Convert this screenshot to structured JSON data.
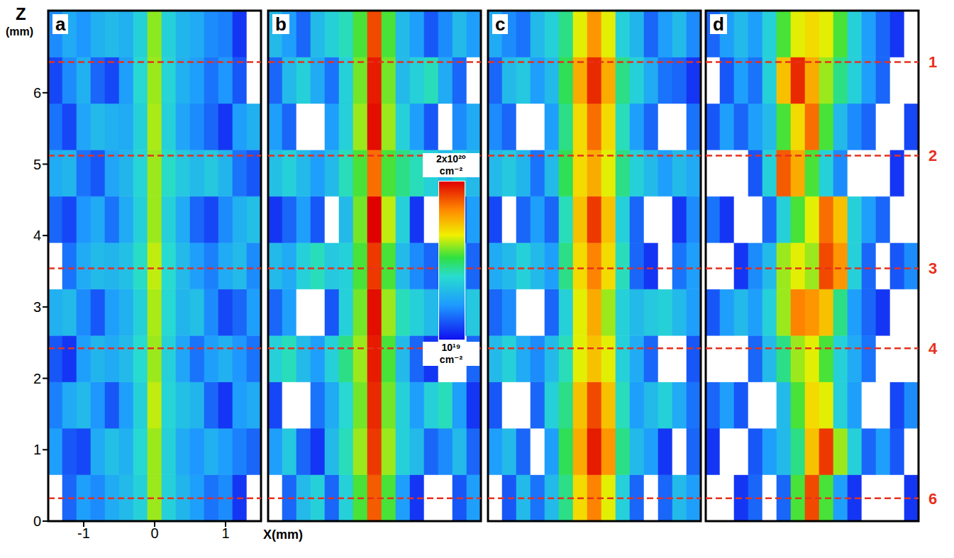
{
  "chart_data": [
    {
      "type": "heatmap",
      "title": "a",
      "xlabel": "X(mm)",
      "ylabel": "Z (mm)",
      "xlim": [
        -1.5,
        1.5
      ],
      "ylim": [
        0,
        7.15
      ],
      "xticks": [
        -1,
        0,
        1
      ],
      "yticks": [
        0,
        1,
        2,
        3,
        4,
        5,
        6
      ],
      "x_bins": [
        -1.5,
        -1.3,
        -1.1,
        -0.9,
        -0.7,
        -0.5,
        -0.3,
        -0.1,
        0.1,
        0.3,
        0.5,
        0.7,
        0.9,
        1.1,
        1.3,
        1.5
      ],
      "y_bins": [
        0,
        0.65,
        1.3,
        1.95,
        2.6,
        3.25,
        3.9,
        4.55,
        5.2,
        5.85,
        6.5,
        7.15
      ],
      "cells": [
        [
          9e+18,
          1.5e+19,
          2e+19,
          1.8e+19,
          2.2e+19,
          2.5e+19,
          3e+19,
          6e+19,
          3e+19,
          2.4e+19,
          2e+19,
          1.6e+19,
          1.8e+19,
          1.2e+19,
          9e+18
        ],
        [
          2e+19,
          1.4e+19,
          1.3e+19,
          2.2e+19,
          2.6e+19,
          2.3e+19,
          3.2e+19,
          6e+19,
          3e+19,
          2.2e+19,
          1.9e+19,
          2.3e+19,
          2e+19,
          1.7e+19,
          1.5e+19
        ],
        [
          1.7e+19,
          2.2e+19,
          2.5e+19,
          1.9e+19,
          1.4e+19,
          2e+19,
          3e+19,
          6.5e+19,
          3.1e+19,
          2.6e+19,
          2.4e+19,
          1.5e+19,
          1.2e+19,
          2e+19,
          2.2e+19
        ],
        [
          1.4e+19,
          1.2e+19,
          2e+19,
          2.4e+19,
          2.2e+19,
          2.5e+19,
          3.3e+19,
          6e+19,
          3e+19,
          2.1e+19,
          1.6e+19,
          2e+19,
          2.3e+19,
          1.9e+19,
          1.6e+19
        ],
        [
          2.3e+19,
          2.5e+19,
          1.8e+19,
          1.4e+19,
          2e+19,
          2.3e+19,
          3e+19,
          6.2e+19,
          3.2e+19,
          2.4e+19,
          2.6e+19,
          1.8e+19,
          1.3e+19,
          1.5e+19,
          2e+19
        ],
        [
          9e+18,
          1.6e+19,
          2.2e+19,
          2.5e+19,
          2.4e+19,
          2.6e+19,
          3.4e+19,
          6.5e+19,
          3.3e+19,
          2.5e+19,
          2e+19,
          1.7e+19,
          2.2e+19,
          2.5e+19,
          1.8e+19
        ],
        [
          1.5e+19,
          1.3e+19,
          1.9e+19,
          2.2e+19,
          1.6e+19,
          2.2e+19,
          3e+19,
          6e+19,
          3e+19,
          2.2e+19,
          1.5e+19,
          1.3e+19,
          1.8e+19,
          2.3e+19,
          2.6e+19
        ],
        [
          2.2e+19,
          2.4e+19,
          1.6e+19,
          1.4e+19,
          2.1e+19,
          2.4e+19,
          3.1e+19,
          6e+19,
          3.4e+19,
          2.8e+19,
          2.5e+19,
          2.8e+19,
          2.4e+19,
          1.6e+19,
          1.4e+19
        ],
        [
          1.6e+19,
          1.3e+19,
          2.1e+19,
          2.5e+19,
          2.3e+19,
          2.2e+19,
          3e+19,
          6.2e+19,
          3e+19,
          2.1e+19,
          1.8e+19,
          1.5e+19,
          1.2e+19,
          2e+19,
          2.3e+19
        ],
        [
          1.3e+19,
          1.8e+19,
          2.3e+19,
          1.5e+19,
          1.3e+19,
          2e+19,
          3.2e+19,
          6e+19,
          3.1e+19,
          2.3e+19,
          2e+19,
          1.6e+19,
          1.9e+19,
          1.4e+19,
          9e+18
        ],
        [
          1.8e+19,
          2.2e+19,
          1.9e+19,
          2.3e+19,
          2.5e+19,
          2.3e+19,
          3e+19,
          5.8e+19,
          3e+19,
          2.4e+19,
          2.2e+19,
          1.8e+19,
          1.7e+19,
          1.2e+19,
          9e+18
        ]
      ]
    },
    {
      "type": "heatmap",
      "title": "b",
      "tick_labels": false,
      "xlim": [
        -1.5,
        1.5
      ],
      "ylim": [
        0,
        7.15
      ],
      "xticks": [
        -1,
        0,
        1
      ],
      "yticks": [
        0,
        1,
        2,
        3,
        4,
        5,
        6
      ],
      "x_bins": [
        -1.5,
        -1.3,
        -1.1,
        -0.9,
        -0.7,
        -0.5,
        -0.3,
        -0.1,
        0.1,
        0.3,
        0.5,
        0.7,
        0.9,
        1.1,
        1.3,
        1.5
      ],
      "y_bins": [
        0,
        0.65,
        1.3,
        1.95,
        2.6,
        3.25,
        3.9,
        4.55,
        5.2,
        5.85,
        6.5,
        7.15
      ],
      "cells": [
        [
          5e+18,
          1.5e+19,
          2.5e+19,
          3e+19,
          1.5e+19,
          3e+19,
          5e+19,
          1.4e+20,
          5e+19,
          2e+19,
          1.2e+19,
          5e+18,
          5e+18,
          1.4e+19,
          2e+19
        ],
        [
          2e+19,
          2.8e+19,
          1.5e+19,
          1.2e+19,
          2.5e+19,
          3.5e+19,
          6e+19,
          1.6e+20,
          6e+19,
          3e+19,
          2.5e+19,
          1.5e+19,
          1.8e+19,
          2.5e+19,
          1.5e+19
        ],
        [
          1.3e+19,
          5e+18,
          5e+18,
          1.6e+19,
          2.2e+19,
          3.2e+19,
          5.5e+19,
          1.7e+20,
          5.5e+19,
          3e+19,
          2e+19,
          3e+19,
          3.5e+19,
          2e+19,
          1.2e+19
        ],
        [
          3e+19,
          3.5e+19,
          2.5e+19,
          2e+19,
          3e+19,
          4e+19,
          6e+19,
          1.8e+20,
          5e+19,
          2.5e+19,
          1.5e+19,
          1.2e+19,
          5e+18,
          5e+18,
          1.5e+19
        ],
        [
          1.5e+19,
          2e+19,
          5e+18,
          5e+18,
          1.4e+19,
          3e+19,
          5.5e+19,
          1.9e+20,
          6e+19,
          3.5e+19,
          3e+19,
          2.5e+19,
          2e+19,
          2.2e+19,
          2.8e+19
        ],
        [
          2.5e+19,
          2.2e+19,
          3e+19,
          3.5e+19,
          2.8e+19,
          3e+19,
          5e+19,
          1.6e+20,
          5e+19,
          2.5e+19,
          1.8e+19,
          1.5e+19,
          1.2e+19,
          2e+19,
          1.5e+19
        ],
        [
          1.2e+19,
          1.5e+19,
          2e+19,
          1.4e+19,
          5e+18,
          2.5e+19,
          5.5e+19,
          2e+20,
          6.5e+19,
          3e+19,
          1.2e+19,
          5e+18,
          5e+18,
          1.3e+19,
          2e+19
        ],
        [
          2.6e+19,
          3e+19,
          2.5e+19,
          2e+19,
          2.5e+19,
          3.5e+19,
          5e+19,
          1.3e+20,
          5e+19,
          4e+19,
          3.5e+19,
          3e+19,
          2.5e+19,
          3e+19,
          2.5e+19
        ],
        [
          2e+19,
          1.5e+19,
          5e+18,
          5e+18,
          2e+19,
          3e+19,
          6e+19,
          1.9e+20,
          6e+19,
          3e+19,
          2e+19,
          1.4e+19,
          5e+18,
          1.8e+19,
          2.2e+19
        ],
        [
          1.5e+19,
          2.5e+19,
          3e+19,
          2.2e+19,
          1.6e+19,
          3e+19,
          5.5e+19,
          1.8e+20,
          5.5e+19,
          2.5e+19,
          3e+19,
          3.5e+19,
          2.2e+19,
          1.5e+19,
          5e+18
        ],
        [
          2.5e+19,
          2e+19,
          1.5e+19,
          2.5e+19,
          3e+19,
          3.5e+19,
          5e+19,
          1.5e+20,
          5e+19,
          2.5e+19,
          2e+19,
          1.4e+19,
          1.8e+19,
          2.5e+19,
          2e+19
        ]
      ]
    },
    {
      "type": "heatmap",
      "title": "c",
      "tick_labels": false,
      "xlim": [
        -1.5,
        1.5
      ],
      "ylim": [
        0,
        7.15
      ],
      "xticks": [
        -1,
        0,
        1
      ],
      "yticks": [
        0,
        1,
        2,
        3,
        4,
        5,
        6
      ],
      "x_bins": [
        -1.5,
        -1.3,
        -1.1,
        -0.9,
        -0.7,
        -0.5,
        -0.3,
        -0.1,
        0.1,
        0.3,
        0.5,
        0.7,
        0.9,
        1.1,
        1.3,
        1.5
      ],
      "y_bins": [
        0,
        0.65,
        1.3,
        1.95,
        2.6,
        3.25,
        3.9,
        4.55,
        5.2,
        5.85,
        6.5,
        7.15
      ],
      "cells": [
        [
          5e+18,
          1.4e+19,
          2.5e+19,
          1.6e+19,
          2.5e+19,
          4e+19,
          8e+19,
          1.2e+20,
          7e+19,
          3e+19,
          1.5e+19,
          5e+18,
          1.5e+19,
          2.5e+19,
          2e+19
        ],
        [
          2e+19,
          2.5e+19,
          1.5e+19,
          5e+18,
          2e+19,
          4.5e+19,
          1e+20,
          1.8e+20,
          1.1e+20,
          4e+19,
          2.5e+19,
          2e+19,
          1.2e+19,
          5e+18,
          1.5e+19
        ],
        [
          1.4e+19,
          5e+18,
          5e+18,
          1.5e+19,
          3e+19,
          4e+19,
          9e+19,
          1.5e+20,
          9e+19,
          3.5e+19,
          2e+19,
          2.5e+19,
          3e+19,
          2.2e+19,
          1.6e+19
        ],
        [
          2.5e+19,
          3e+19,
          2.2e+19,
          1.8e+19,
          2.5e+19,
          3.5e+19,
          7e+19,
          9e+19,
          7e+19,
          3e+19,
          2.2e+19,
          1.5e+19,
          5e+18,
          5e+18,
          1.4e+19
        ],
        [
          1.5e+19,
          1.8e+19,
          5e+18,
          5e+18,
          1.5e+19,
          3e+19,
          7e+19,
          1e+20,
          6e+19,
          3e+19,
          2.5e+19,
          2.8e+19,
          3e+19,
          2.5e+19,
          2e+19
        ],
        [
          2.2e+19,
          2.5e+19,
          3e+19,
          2.5e+19,
          2e+19,
          4e+19,
          8e+19,
          1.2e+20,
          8e+19,
          3.5e+19,
          1.5e+19,
          1.2e+19,
          5e+18,
          1.6e+19,
          2e+19
        ],
        [
          1.3e+19,
          5e+18,
          1.5e+19,
          2e+19,
          1.5e+19,
          3.5e+19,
          9e+19,
          1.6e+20,
          9e+19,
          3e+19,
          1.5e+19,
          5e+18,
          5e+18,
          1.2e+19,
          1.8e+19
        ],
        [
          2.5e+19,
          2.8e+19,
          2.4e+19,
          1.6e+19,
          2.5e+19,
          4.5e+19,
          8e+19,
          1e+20,
          7e+19,
          4e+19,
          3e+19,
          2.5e+19,
          2e+19,
          2.5e+19,
          2.2e+19
        ],
        [
          1.8e+19,
          1.5e+19,
          5e+18,
          5e+18,
          2e+19,
          4e+19,
          8e+19,
          1.3e+20,
          8e+19,
          3.5e+19,
          2e+19,
          1.5e+19,
          5e+18,
          5e+18,
          1.6e+19
        ],
        [
          1.5e+19,
          2.5e+19,
          2.8e+19,
          2e+19,
          2.5e+19,
          4.5e+19,
          1e+20,
          1.7e+20,
          1e+20,
          4e+19,
          3e+19,
          2.2e+19,
          1.6e+19,
          1.5e+19,
          1.2e+19
        ],
        [
          2.2e+19,
          1.8e+19,
          1.6e+19,
          2.5e+19,
          3e+19,
          4e+19,
          7e+19,
          1.1e+20,
          7e+19,
          3e+19,
          2.4e+19,
          1.5e+19,
          2e+19,
          2.5e+19,
          1.8e+19
        ]
      ]
    },
    {
      "type": "heatmap",
      "title": "d",
      "tick_labels": false,
      "xlim": [
        -1.5,
        1.5
      ],
      "ylim": [
        0,
        7.15
      ],
      "xticks": [
        -1,
        0,
        1
      ],
      "yticks": [
        0,
        1,
        2,
        3,
        4,
        5,
        6
      ],
      "x_bins": [
        -1.5,
        -1.3,
        -1.1,
        -0.9,
        -0.7,
        -0.5,
        -0.3,
        -0.1,
        0.1,
        0.3,
        0.5,
        0.7,
        0.9,
        1.1,
        1.3,
        1.5
      ],
      "y_bins": [
        0,
        0.65,
        1.3,
        1.95,
        2.6,
        3.25,
        3.9,
        4.55,
        5.2,
        5.85,
        6.5,
        7.15
      ],
      "cells": [
        [
          5e+18,
          5e+18,
          1.2e+19,
          1.5e+19,
          5e+18,
          1.5e+19,
          5e+19,
          1.5e+20,
          5e+19,
          2e+19,
          1.2e+19,
          5e+18,
          5e+18,
          5e+18,
          1.2e+19
        ],
        [
          1.2e+19,
          5e+18,
          5e+18,
          1.4e+19,
          2e+19,
          2.5e+19,
          4e+19,
          9e+19,
          1.6e+20,
          6e+19,
          3e+19,
          1.5e+19,
          2e+19,
          1.4e+19,
          5e+18
        ],
        [
          1.5e+19,
          2e+19,
          1.4e+19,
          5e+18,
          5e+18,
          2.5e+19,
          5e+19,
          8e+19,
          7e+19,
          3e+19,
          2e+19,
          5e+18,
          5e+18,
          1.3e+19,
          1.8e+19
        ],
        [
          5e+18,
          5e+18,
          5e+18,
          1.5e+19,
          2.5e+19,
          4e+19,
          6e+19,
          7e+19,
          5e+19,
          3e+19,
          2.2e+19,
          1.6e+19,
          5e+18,
          5e+18,
          5e+18
        ],
        [
          1.4e+19,
          2e+19,
          2.5e+19,
          2e+19,
          3e+19,
          6e+19,
          1.2e+20,
          1.1e+20,
          9e+19,
          4e+19,
          2e+19,
          1.5e+19,
          1.2e+19,
          5e+18,
          5e+18
        ],
        [
          5e+18,
          5e+18,
          1.2e+19,
          1.8e+19,
          2.5e+19,
          6e+19,
          7e+19,
          6e+19,
          1.5e+20,
          1.1e+20,
          3e+19,
          1.5e+19,
          5e+18,
          1.4e+19,
          1.8e+19
        ],
        [
          1.6e+19,
          1.2e+19,
          5e+18,
          5e+18,
          1.5e+19,
          3e+19,
          5e+19,
          7e+19,
          1.3e+20,
          9e+19,
          3e+19,
          2e+19,
          1.5e+19,
          5e+18,
          5e+18
        ],
        [
          5e+18,
          5e+18,
          5e+18,
          1.4e+19,
          3e+19,
          1.4e+20,
          1e+20,
          5e+19,
          3e+19,
          1.8e+19,
          5e+18,
          5e+18,
          5e+18,
          1.2e+19,
          5e+18
        ],
        [
          1.4e+19,
          2e+19,
          1.5e+19,
          2e+19,
          2.5e+19,
          5e+19,
          8e+19,
          1.3e+20,
          5e+19,
          2.5e+19,
          1.8e+19,
          1.5e+19,
          5e+18,
          5e+18,
          1.3e+19
        ],
        [
          5e+18,
          1.4e+19,
          2e+19,
          1.6e+19,
          3e+19,
          9e+19,
          1.7e+20,
          1e+20,
          6e+19,
          4e+19,
          3e+19,
          2e+19,
          1.5e+19,
          5e+18,
          5e+18
        ],
        [
          1.5e+19,
          2e+19,
          2.5e+19,
          2e+19,
          3e+19,
          5e+19,
          7e+19,
          8e+19,
          7e+19,
          5e+19,
          3e+19,
          2e+19,
          1.5e+19,
          1.2e+19,
          5e+18
        ]
      ]
    }
  ],
  "colorbar": {
    "range": [
      1e+19,
      2e+20
    ],
    "log": true,
    "ticks": [
      {
        "value": 2e+20,
        "label": "2x10²⁰ cm⁻²"
      },
      {
        "value": 1e+19,
        "label": "10¹⁹ cm⁻²"
      }
    ]
  },
  "reference_lines": {
    "color": "#e8301e",
    "line_style": "dashed",
    "lines": [
      {
        "value": 6.43,
        "label": "1"
      },
      {
        "value": 5.12,
        "label": "2"
      },
      {
        "value": 3.54,
        "label": "3"
      },
      {
        "value": 2.42,
        "label": "4"
      },
      {
        "value": 0.32,
        "label": "6"
      }
    ]
  }
}
